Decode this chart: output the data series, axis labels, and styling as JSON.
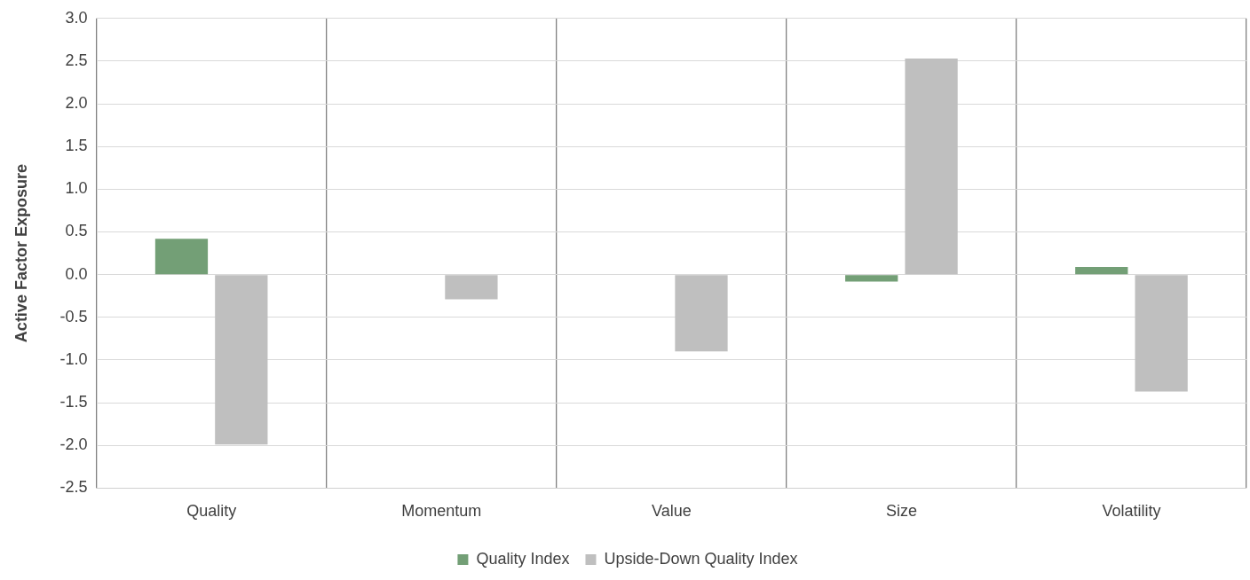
{
  "chart_data": {
    "type": "bar",
    "ylabel": "Active Factor Exposure",
    "categories": [
      "Quality",
      "Momentum",
      "Value",
      "Size",
      "Volatility"
    ],
    "series": [
      {
        "name": "Quality Index",
        "color": "#739f76",
        "values": [
          0.42,
          0,
          0,
          -0.08,
          0.09
        ]
      },
      {
        "name": "Upside-Down Quality Index",
        "color": "#bfbfbf",
        "values": [
          -1.99,
          -0.29,
          -0.9,
          2.53,
          -1.37
        ]
      }
    ],
    "ylim": [
      -2.5,
      3.0
    ],
    "yticks": [
      {
        "value": -2.5,
        "label": "-2.5"
      },
      {
        "value": -2,
        "label": "-2.0"
      },
      {
        "value": -1.5,
        "label": "-1.5"
      },
      {
        "value": -1,
        "label": "-1.0"
      },
      {
        "value": -0.5,
        "label": "-0.5"
      },
      {
        "value": 0,
        "label": "0.0"
      },
      {
        "value": 0.5,
        "label": "0.5"
      },
      {
        "value": 1,
        "label": "1.0"
      },
      {
        "value": 1.5,
        "label": "1.5"
      },
      {
        "value": 2,
        "label": "2.0"
      },
      {
        "value": 2.5,
        "label": "2.5"
      },
      {
        "value": 3,
        "label": "3.0"
      }
    ],
    "grid": true,
    "legend": "bottom"
  }
}
